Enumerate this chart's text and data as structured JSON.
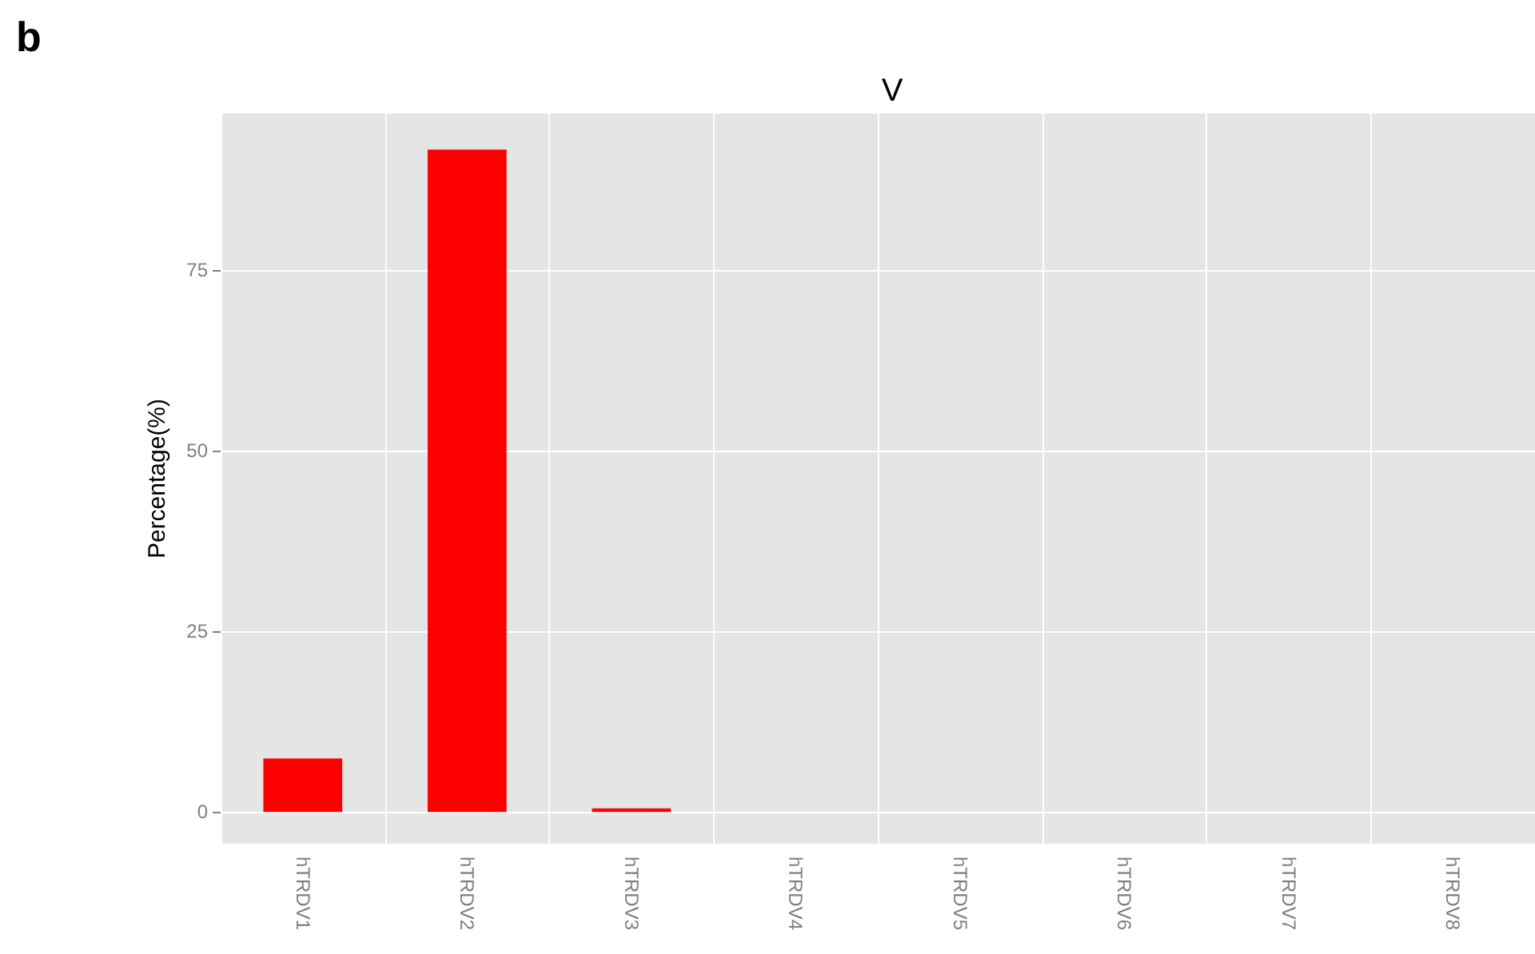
{
  "chart_data": {
    "type": "bar",
    "title": "V",
    "ylabel": "Percentage(%)",
    "annotations": [
      "b"
    ],
    "categories": [
      "hTRDV1",
      "hTRDV2",
      "hTRDV3",
      "hTRDV4",
      "hTRDV5",
      "hTRDV6",
      "hTRDV7",
      "hTRDV8"
    ],
    "values": [
      7.4,
      91.7,
      0.5,
      0,
      0,
      0,
      0,
      0
    ],
    "color": "#ff0000",
    "ylim": [
      -4.4,
      96.7
    ],
    "yticks": [
      0,
      25,
      50,
      75
    ],
    "grid": true
  }
}
